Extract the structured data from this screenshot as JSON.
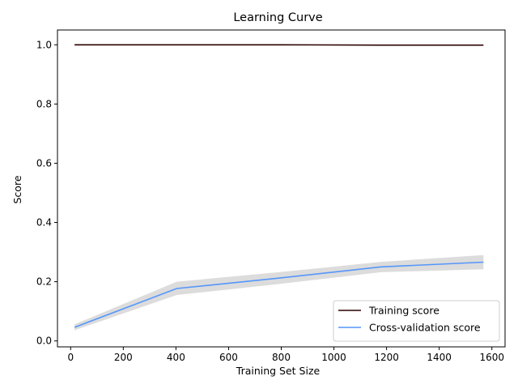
{
  "chart_data": {
    "type": "line",
    "title": "Learning Curve",
    "xlabel": "Training Set Size",
    "ylabel": "Score",
    "xlim": [
      -50,
      1650
    ],
    "ylim": [
      -0.02,
      1.05
    ],
    "xticks": [
      0,
      200,
      400,
      600,
      800,
      1000,
      1200,
      1400,
      1600
    ],
    "yticks": [
      0.0,
      0.2,
      0.4,
      0.6,
      0.8,
      1.0
    ],
    "grid": false,
    "legend_position": "lower-right",
    "x": [
      15,
      403,
      790,
      1179,
      1568
    ],
    "series": [
      {
        "name": "Training score",
        "color": "#2b0000",
        "values": [
          1.0,
          1.0,
          1.0,
          0.999,
          0.999
        ],
        "band_lower": [
          1.0,
          1.0,
          1.0,
          0.999,
          0.999
        ],
        "band_upper": [
          1.0,
          1.0,
          1.0,
          0.999,
          0.999
        ]
      },
      {
        "name": "Cross-validation score",
        "color": "#5596fa",
        "values": [
          0.046,
          0.177,
          0.212,
          0.25,
          0.266
        ],
        "band_lower": [
          0.036,
          0.155,
          0.192,
          0.232,
          0.242
        ],
        "band_upper": [
          0.056,
          0.2,
          0.232,
          0.267,
          0.29
        ]
      }
    ],
    "band_color": "#dcdcdc"
  }
}
